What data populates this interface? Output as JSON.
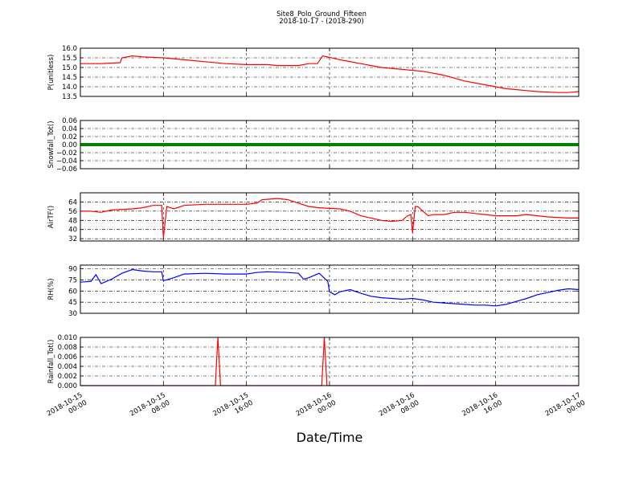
{
  "figure": {
    "title": "Site8_Polo_Ground_Fifteen",
    "subtitle": "2018-10-17 - (2018-290)",
    "xlabel": "Date/Time"
  },
  "chart_data": {
    "type": "line",
    "x_ticks": [
      {
        "line1": "2018-10-15",
        "line2": "00:00",
        "t": 0
      },
      {
        "line1": "2018-10-15",
        "line2": "08:00",
        "t": 8
      },
      {
        "line1": "2018-10-15",
        "line2": "16:00",
        "t": 16
      },
      {
        "line1": "2018-10-16",
        "line2": "00:00",
        "t": 24
      },
      {
        "line1": "2018-10-16",
        "line2": "08:00",
        "t": 32
      },
      {
        "line1": "2018-10-16",
        "line2": "16:00",
        "t": 40
      },
      {
        "line1": "2018-10-17",
        "line2": "00:00",
        "t": 48
      }
    ],
    "xlim": [
      "2018-10-15 00:00",
      "2018-10-17 00:00"
    ],
    "grid": true,
    "panels": [
      {
        "ylabel": "P(unitless)",
        "color": "#ff0000",
        "ylim": [
          13.5,
          16.0
        ],
        "yticks": [
          "13.5",
          "14.0",
          "14.5",
          "15.0",
          "15.5",
          "16.0"
        ],
        "ytick_values": [
          13.5,
          14.0,
          14.5,
          15.0,
          15.5,
          16.0
        ],
        "points": [
          {
            "x": "2018-10-15 00:00",
            "y": 15.2
          },
          {
            "x": "2018-10-15 02:00",
            "y": 15.2
          },
          {
            "x": "2018-10-15 03:50",
            "y": 15.25
          },
          {
            "x": "2018-10-15 04:00",
            "y": 15.5
          },
          {
            "x": "2018-10-15 05:00",
            "y": 15.6
          },
          {
            "x": "2018-10-15 06:00",
            "y": 15.55
          },
          {
            "x": "2018-10-15 08:00",
            "y": 15.5
          },
          {
            "x": "2018-10-15 10:00",
            "y": 15.4
          },
          {
            "x": "2018-10-15 12:00",
            "y": 15.3
          },
          {
            "x": "2018-10-15 14:00",
            "y": 15.2
          },
          {
            "x": "2018-10-15 16:00",
            "y": 15.15
          },
          {
            "x": "2018-10-15 18:00",
            "y": 15.15
          },
          {
            "x": "2018-10-15 19:00",
            "y": 15.1
          },
          {
            "x": "2018-10-15 21:00",
            "y": 15.1
          },
          {
            "x": "2018-10-15 22:00",
            "y": 15.2
          },
          {
            "x": "2018-10-15 22:50",
            "y": 15.2
          },
          {
            "x": "2018-10-15 23:20",
            "y": 15.6
          },
          {
            "x": "2018-10-15 23:50",
            "y": 15.55
          },
          {
            "x": "2018-10-16 01:00",
            "y": 15.4
          },
          {
            "x": "2018-10-16 03:00",
            "y": 15.2
          },
          {
            "x": "2018-10-16 05:00",
            "y": 15.0
          },
          {
            "x": "2018-10-16 07:00",
            "y": 14.9
          },
          {
            "x": "2018-10-16 09:00",
            "y": 14.8
          },
          {
            "x": "2018-10-16 11:00",
            "y": 14.6
          },
          {
            "x": "2018-10-16 13:00",
            "y": 14.3
          },
          {
            "x": "2018-10-16 15:00",
            "y": 14.1
          },
          {
            "x": "2018-10-16 17:00",
            "y": 13.9
          },
          {
            "x": "2018-10-16 19:00",
            "y": 13.8
          },
          {
            "x": "2018-10-16 20:00",
            "y": 13.75
          },
          {
            "x": "2018-10-16 22:00",
            "y": 13.7
          },
          {
            "x": "2018-10-16 23:00",
            "y": 13.7
          },
          {
            "x": "2018-10-17 00:00",
            "y": 13.75
          }
        ]
      },
      {
        "ylabel": "Snowfall_Tot()",
        "color": "#008000",
        "ylim": [
          -0.06,
          0.06
        ],
        "yticks": [
          "−0.06",
          "−0.04",
          "−0.02",
          "0.00",
          "0.02",
          "0.04",
          "0.06"
        ],
        "ytick_values": [
          -0.06,
          -0.04,
          -0.02,
          0.0,
          0.02,
          0.04,
          0.06
        ],
        "points": [
          {
            "x": "2018-10-15 00:00",
            "y": 0.0
          },
          {
            "x": "2018-10-17 00:00",
            "y": 0.0
          }
        ],
        "markers": true
      },
      {
        "ylabel": "AirTF()",
        "color": "#ff0000",
        "ylim": [
          30,
          72
        ],
        "yticks": [
          "32",
          "40",
          "48",
          "56",
          "64"
        ],
        "ytick_values": [
          32,
          40,
          48,
          56,
          64
        ],
        "points": [
          {
            "x": "2018-10-15 00:00",
            "y": 56
          },
          {
            "x": "2018-10-15 01:00",
            "y": 56
          },
          {
            "x": "2018-10-15 02:00",
            "y": 55
          },
          {
            "x": "2018-10-15 03:00",
            "y": 57
          },
          {
            "x": "2018-10-15 05:00",
            "y": 58
          },
          {
            "x": "2018-10-15 06:00",
            "y": 59
          },
          {
            "x": "2018-10-15 07:00",
            "y": 61
          },
          {
            "x": "2018-10-15 07:50",
            "y": 61
          },
          {
            "x": "2018-10-15 08:00",
            "y": 33
          },
          {
            "x": "2018-10-15 08:20",
            "y": 60
          },
          {
            "x": "2018-10-15 09:00",
            "y": 58
          },
          {
            "x": "2018-10-15 10:00",
            "y": 61
          },
          {
            "x": "2018-10-15 12:00",
            "y": 62
          },
          {
            "x": "2018-10-15 14:00",
            "y": 62
          },
          {
            "x": "2018-10-15 16:00",
            "y": 62
          },
          {
            "x": "2018-10-15 17:00",
            "y": 63
          },
          {
            "x": "2018-10-15 17:30",
            "y": 66
          },
          {
            "x": "2018-10-15 19:00",
            "y": 67
          },
          {
            "x": "2018-10-15 20:00",
            "y": 66
          },
          {
            "x": "2018-10-15 21:00",
            "y": 63
          },
          {
            "x": "2018-10-15 22:00",
            "y": 60
          },
          {
            "x": "2018-10-15 23:00",
            "y": 59
          },
          {
            "x": "2018-10-16 01:00",
            "y": 58
          },
          {
            "x": "2018-10-16 02:00",
            "y": 56
          },
          {
            "x": "2018-10-16 03:00",
            "y": 52
          },
          {
            "x": "2018-10-16 04:00",
            "y": 50
          },
          {
            "x": "2018-10-16 05:00",
            "y": 48
          },
          {
            "x": "2018-10-16 06:00",
            "y": 47
          },
          {
            "x": "2018-10-16 07:00",
            "y": 48
          },
          {
            "x": "2018-10-16 07:30",
            "y": 52
          },
          {
            "x": "2018-10-16 07:50",
            "y": 53
          },
          {
            "x": "2018-10-16 08:00",
            "y": 37
          },
          {
            "x": "2018-10-16 08:15",
            "y": 60
          },
          {
            "x": "2018-10-16 08:30",
            "y": 60
          },
          {
            "x": "2018-10-16 09:00",
            "y": 56
          },
          {
            "x": "2018-10-16 09:30",
            "y": 52
          },
          {
            "x": "2018-10-16 10:00",
            "y": 53
          },
          {
            "x": "2018-10-16 11:00",
            "y": 53
          },
          {
            "x": "2018-10-16 12:00",
            "y": 55
          },
          {
            "x": "2018-10-16 13:00",
            "y": 55
          },
          {
            "x": "2018-10-16 14:00",
            "y": 54
          },
          {
            "x": "2018-10-16 15:00",
            "y": 53
          },
          {
            "x": "2018-10-16 16:00",
            "y": 52
          },
          {
            "x": "2018-10-16 18:00",
            "y": 52
          },
          {
            "x": "2018-10-16 19:00",
            "y": 53
          },
          {
            "x": "2018-10-16 21:00",
            "y": 51
          },
          {
            "x": "2018-10-16 23:00",
            "y": 50
          },
          {
            "x": "2018-10-17 00:00",
            "y": 50
          }
        ]
      },
      {
        "ylabel": "RH(%)",
        "color": "#0000ff",
        "ylim": [
          30,
          95
        ],
        "yticks": [
          "30",
          "45",
          "60",
          "75",
          "90"
        ],
        "ytick_values": [
          30,
          45,
          60,
          75,
          90
        ],
        "points": [
          {
            "x": "2018-10-15 00:00",
            "y": 72
          },
          {
            "x": "2018-10-15 01:00",
            "y": 73
          },
          {
            "x": "2018-10-15 01:30",
            "y": 82
          },
          {
            "x": "2018-10-15 02:00",
            "y": 70
          },
          {
            "x": "2018-10-15 03:00",
            "y": 76
          },
          {
            "x": "2018-10-15 04:00",
            "y": 84
          },
          {
            "x": "2018-10-15 05:00",
            "y": 89
          },
          {
            "x": "2018-10-15 06:00",
            "y": 87
          },
          {
            "x": "2018-10-15 07:00",
            "y": 86
          },
          {
            "x": "2018-10-15 07:50",
            "y": 86
          },
          {
            "x": "2018-10-15 08:00",
            "y": 74
          },
          {
            "x": "2018-10-15 09:00",
            "y": 78
          },
          {
            "x": "2018-10-15 10:00",
            "y": 83
          },
          {
            "x": "2018-10-15 12:00",
            "y": 84
          },
          {
            "x": "2018-10-15 14:00",
            "y": 83
          },
          {
            "x": "2018-10-15 16:00",
            "y": 83
          },
          {
            "x": "2018-10-15 17:00",
            "y": 85
          },
          {
            "x": "2018-10-15 18:00",
            "y": 86
          },
          {
            "x": "2018-10-15 20:00",
            "y": 85
          },
          {
            "x": "2018-10-15 21:00",
            "y": 84
          },
          {
            "x": "2018-10-15 21:30",
            "y": 76
          },
          {
            "x": "2018-10-15 22:00",
            "y": 78
          },
          {
            "x": "2018-10-15 23:00",
            "y": 84
          },
          {
            "x": "2018-10-15 23:50",
            "y": 73
          },
          {
            "x": "2018-10-16 00:00",
            "y": 59
          },
          {
            "x": "2018-10-16 00:30",
            "y": 55
          },
          {
            "x": "2018-10-16 01:00",
            "y": 59
          },
          {
            "x": "2018-10-16 02:00",
            "y": 62
          },
          {
            "x": "2018-10-16 03:00",
            "y": 57
          },
          {
            "x": "2018-10-16 04:00",
            "y": 53
          },
          {
            "x": "2018-10-16 05:00",
            "y": 51
          },
          {
            "x": "2018-10-16 06:00",
            "y": 50
          },
          {
            "x": "2018-10-16 07:00",
            "y": 49
          },
          {
            "x": "2018-10-16 08:00",
            "y": 50
          },
          {
            "x": "2018-10-16 09:00",
            "y": 48
          },
          {
            "x": "2018-10-16 10:00",
            "y": 45
          },
          {
            "x": "2018-10-16 11:00",
            "y": 44
          },
          {
            "x": "2018-10-16 12:00",
            "y": 43
          },
          {
            "x": "2018-10-16 13:00",
            "y": 42
          },
          {
            "x": "2018-10-16 14:00",
            "y": 41
          },
          {
            "x": "2018-10-16 15:00",
            "y": 41
          },
          {
            "x": "2018-10-16 16:00",
            "y": 40
          },
          {
            "x": "2018-10-16 17:00",
            "y": 42
          },
          {
            "x": "2018-10-16 18:00",
            "y": 46
          },
          {
            "x": "2018-10-16 19:00",
            "y": 50
          },
          {
            "x": "2018-10-16 20:00",
            "y": 55
          },
          {
            "x": "2018-10-16 21:00",
            "y": 58
          },
          {
            "x": "2018-10-16 22:00",
            "y": 61
          },
          {
            "x": "2018-10-16 23:00",
            "y": 63
          },
          {
            "x": "2018-10-17 00:00",
            "y": 62
          }
        ]
      },
      {
        "ylabel": "Rainfall_Tot()",
        "color": "#ff0000",
        "ylim": [
          0.0,
          0.01
        ],
        "yticks": [
          "0.000",
          "0.002",
          "0.004",
          "0.006",
          "0.008",
          "0.010"
        ],
        "ytick_values": [
          0.0,
          0.002,
          0.004,
          0.006,
          0.008,
          0.01
        ],
        "points": [
          {
            "x": "2018-10-15 00:00",
            "y": 0.0
          },
          {
            "x": "2018-10-15 13:00",
            "y": 0.0
          },
          {
            "x": "2018-10-15 13:15",
            "y": 0.01
          },
          {
            "x": "2018-10-15 13:30",
            "y": 0.0
          },
          {
            "x": "2018-10-15 23:15",
            "y": 0.0
          },
          {
            "x": "2018-10-15 23:30",
            "y": 0.01
          },
          {
            "x": "2018-10-15 23:45",
            "y": 0.0
          },
          {
            "x": "2018-10-17 00:00",
            "y": 0.0
          }
        ]
      }
    ]
  }
}
